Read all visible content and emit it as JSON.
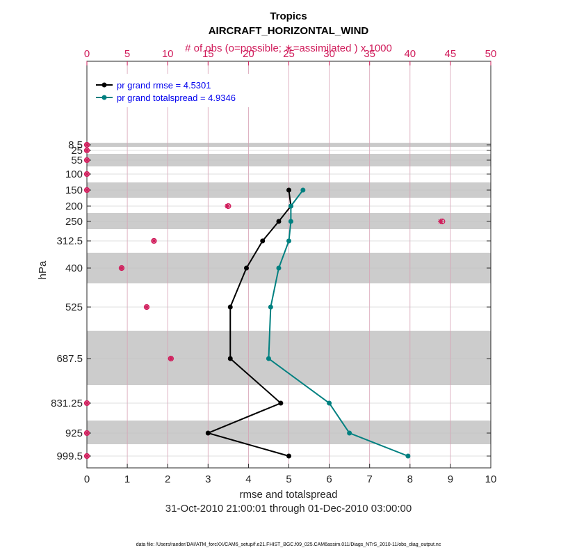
{
  "chart_data": {
    "type": "line",
    "title": "Tropics",
    "subtitle": "AIRCRAFT_HORIZONTAL_WIND",
    "top_axis_label": "# of obs (o=possible; ∗=assimilated ) x 1000",
    "xlabel": "rmse and totalspread",
    "ylabel": "hPa",
    "date_range": "31-Oct-2010 21:00:01 through 01-Dec-2010 03:00:00",
    "footer": "data file: /Users/raeder/DAI/ATM_forcXX/CAM6_setup/f.e21.FHIST_BGC.f09_025.CAM6assim.011/Diags_NTrS_2010-11/obs_diag_output.nc",
    "xlim": [
      0,
      10
    ],
    "xticks": [
      "0",
      "1",
      "2",
      "3",
      "4",
      "5",
      "6",
      "7",
      "8",
      "9",
      "10"
    ],
    "top_xlim": [
      0,
      50
    ],
    "top_xticks": [
      "0",
      "5",
      "10",
      "15",
      "20",
      "25",
      "30",
      "35",
      "40",
      "45",
      "50"
    ],
    "levels": [
      "8.5",
      "25",
      "55",
      "100",
      "150",
      "200",
      "250",
      "312.5",
      "400",
      "525",
      "687.5",
      "831.25",
      "925",
      "999.5"
    ],
    "series": [
      {
        "name": "pr grand rmse = 4.5301",
        "color": "#000000",
        "values": [
          null,
          null,
          null,
          null,
          5.0,
          5.05,
          4.75,
          4.35,
          3.95,
          3.55,
          3.55,
          4.8,
          3.0,
          5.0
        ]
      },
      {
        "name": "pr grand totalspread = 4.9346",
        "color": "#008080",
        "values": [
          null,
          null,
          null,
          null,
          5.35,
          5.05,
          5.05,
          5.0,
          4.75,
          4.55,
          4.5,
          6.0,
          6.5,
          7.95
        ]
      }
    ],
    "obs_counts": {
      "name": "# of obs x 1000",
      "color": "#d01c5b",
      "possible": [
        0.0,
        0.0,
        0.0,
        0.0,
        0.0,
        17.5,
        44.0,
        8.3,
        4.3,
        7.4,
        10.4,
        0.0,
        0.0,
        0.0
      ],
      "assimilated": [
        0.0,
        0.0,
        0.0,
        0.0,
        0.0,
        17.4,
        43.8,
        8.3,
        4.3,
        7.4,
        10.4,
        0.0,
        0.0,
        0.0
      ]
    }
  }
}
